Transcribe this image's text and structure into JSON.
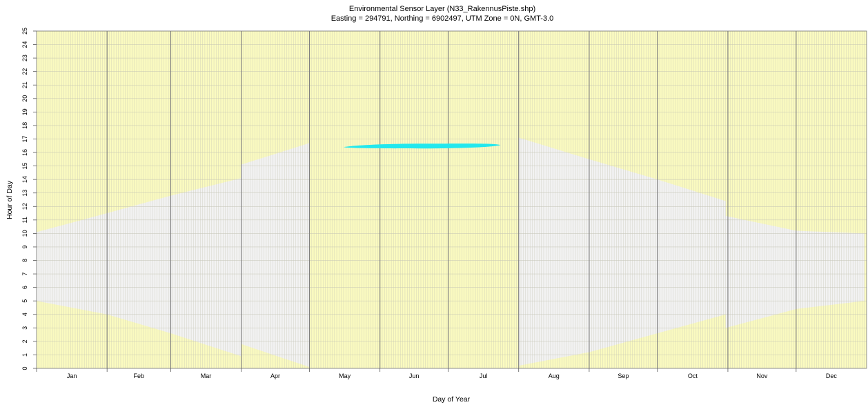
{
  "chart_data": {
    "type": "area",
    "title": "Environmental Sensor Layer (N33_RakennusPiste.shp)",
    "subtitle": "Easting = 294791, Northing = 6902497, UTM Zone = 0N, GMT-3.0",
    "xlabel": "Day of Year",
    "ylabel": "Hour of Day",
    "ylim": [
      0,
      25
    ],
    "xlim": [
      1,
      365
    ],
    "y_ticks": [
      0,
      1,
      2,
      3,
      4,
      5,
      6,
      7,
      8,
      9,
      10,
      11,
      12,
      13,
      14,
      15,
      16,
      17,
      18,
      19,
      20,
      21,
      22,
      23,
      24,
      25
    ],
    "months": [
      {
        "label": "Jan",
        "start": 1,
        "end": 31
      },
      {
        "label": "Feb",
        "start": 32,
        "end": 59
      },
      {
        "label": "Mar",
        "start": 60,
        "end": 90
      },
      {
        "label": "Apr",
        "start": 91,
        "end": 120
      },
      {
        "label": "May",
        "start": 121,
        "end": 151
      },
      {
        "label": "Jun",
        "start": 152,
        "end": 181
      },
      {
        "label": "Jul",
        "start": 182,
        "end": 212
      },
      {
        "label": "Aug",
        "start": 213,
        "end": 243
      },
      {
        "label": "Sep",
        "start": 244,
        "end": 273
      },
      {
        "label": "Oct",
        "start": 274,
        "end": 304
      },
      {
        "label": "Nov",
        "start": 305,
        "end": 334
      },
      {
        "label": "Dec",
        "start": 335,
        "end": 365
      }
    ],
    "background_color": "#fafac0",
    "night_band": {
      "color": "#f2f2f2",
      "upper": [
        {
          "day": 1,
          "hour": 10.1
        },
        {
          "day": 32,
          "hour": 11.5
        },
        {
          "day": 60,
          "hour": 12.8
        },
        {
          "day": 91,
          "hour": 14.1
        },
        {
          "day": 91,
          "hour": 15.1
        },
        {
          "day": 121,
          "hour": 16.7
        },
        {
          "day": 121,
          "hour": 0
        },
        {
          "day": 213,
          "hour": 0
        },
        {
          "day": 213,
          "hour": 17.1
        },
        {
          "day": 244,
          "hour": 15.5
        },
        {
          "day": 274,
          "hour": 14.0
        },
        {
          "day": 304,
          "hour": 12.4
        },
        {
          "day": 304,
          "hour": 11.3
        },
        {
          "day": 335,
          "hour": 10.2
        },
        {
          "day": 365,
          "hour": 10.0
        }
      ],
      "lower": [
        {
          "day": 1,
          "hour": 5.0
        },
        {
          "day": 32,
          "hour": 4.0
        },
        {
          "day": 60,
          "hour": 2.6
        },
        {
          "day": 91,
          "hour": 0.9
        },
        {
          "day": 91,
          "hour": 1.8
        },
        {
          "day": 121,
          "hour": 0.1
        },
        {
          "day": 121,
          "hour": 0
        },
        {
          "day": 213,
          "hour": 0
        },
        {
          "day": 213,
          "hour": 0.2
        },
        {
          "day": 244,
          "hour": 1.2
        },
        {
          "day": 274,
          "hour": 2.6
        },
        {
          "day": 304,
          "hour": 4.0
        },
        {
          "day": 304,
          "hour": 3.0
        },
        {
          "day": 335,
          "hour": 4.4
        },
        {
          "day": 365,
          "hour": 5.0
        }
      ]
    },
    "shadow_event": {
      "color": "#22e8ee",
      "day_start": 136,
      "day_end": 205,
      "hour_start": [
        16.3,
        16.5
      ],
      "hour_end": [
        16.4,
        16.7
      ]
    },
    "grid": true
  }
}
